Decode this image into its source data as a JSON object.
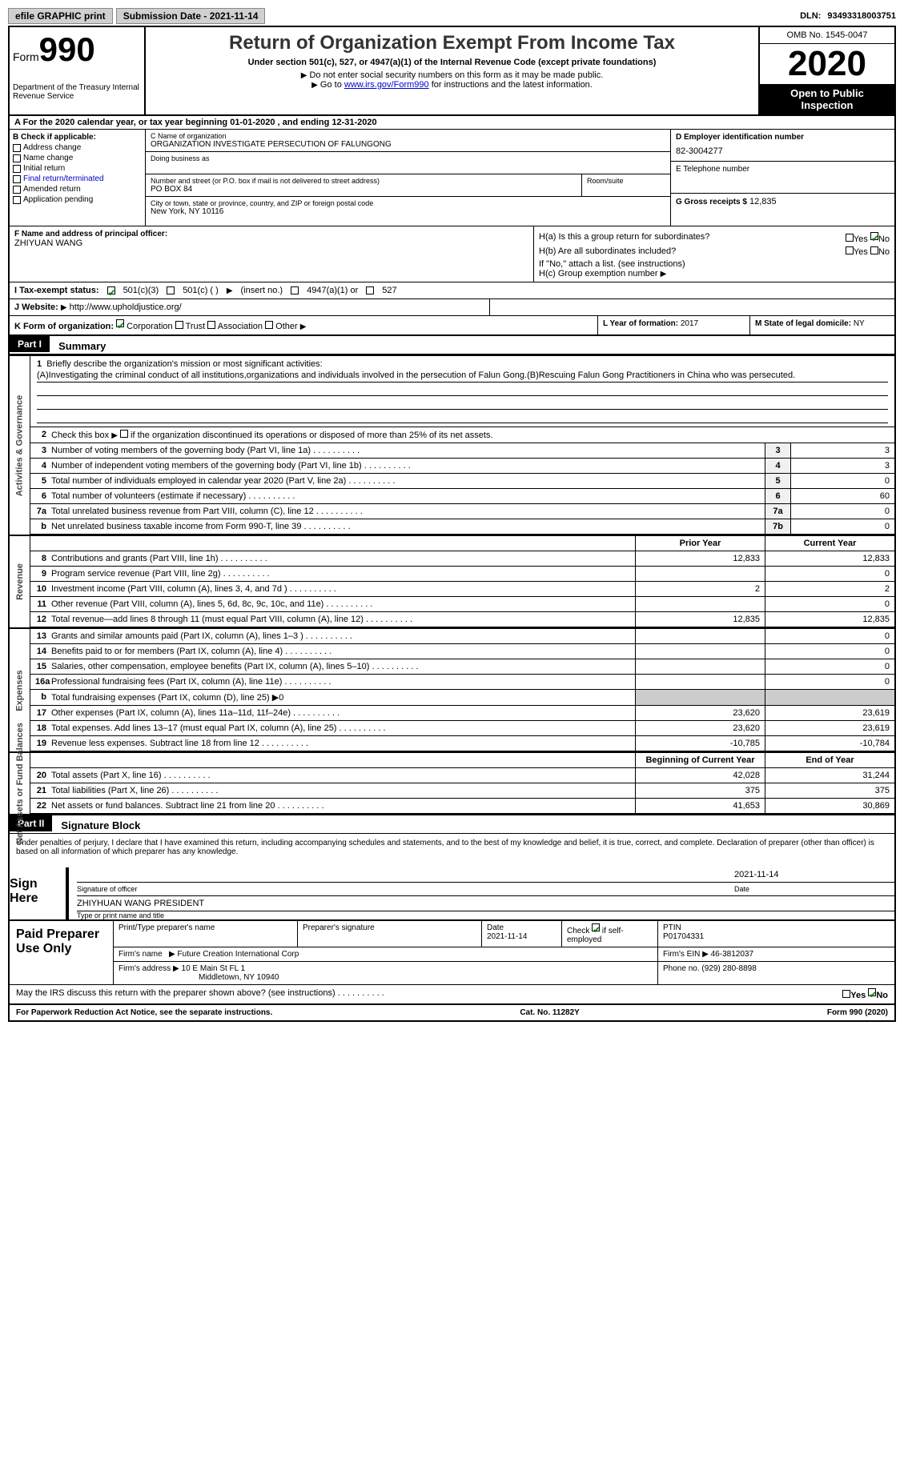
{
  "top_bar": {
    "efile": "efile GRAPHIC print",
    "submission": "Submission Date - 2021-11-14",
    "dln_label": "DLN:",
    "dln": "93493318003751"
  },
  "header": {
    "form_word": "Form",
    "form_num": "990",
    "dept": "Department of the Treasury\nInternal Revenue Service",
    "title": "Return of Organization Exempt From Income Tax",
    "under": "Under section 501(c), 527, or 4947(a)(1) of the Internal Revenue Code (except private foundations)",
    "ssn_note": "Do not enter social security numbers on this form as it may be made public.",
    "goto": "Go to ",
    "goto_link": "www.irs.gov/Form990",
    "goto_after": " for instructions and the latest information.",
    "omb": "OMB No. 1545-0047",
    "year": "2020",
    "inspection": "Open to Public Inspection"
  },
  "row_a": "For the 2020 calendar year, or tax year beginning 01-01-2020   , and ending 12-31-2020",
  "box_b": {
    "label": "B Check if applicable:",
    "items": [
      "Address change",
      "Name change",
      "Initial return",
      "Final return/terminated",
      "Amended return",
      "Application pending"
    ]
  },
  "box_c": {
    "c_label": "C Name of organization",
    "c_name": "ORGANIZATION INVESTIGATE PERSECUTION OF FALUNGONG",
    "dba_label": "Doing business as",
    "street_label": "Number and street (or P.O. box if mail is not delivered to street address)",
    "room_label": "Room/suite",
    "street": "PO BOX 84",
    "city_label": "City or town, state or province, country, and ZIP or foreign postal code",
    "city": "New York, NY  10116"
  },
  "box_d": {
    "label": "D Employer identification number",
    "value": "82-3004277"
  },
  "box_e": {
    "label": "E Telephone number"
  },
  "box_g": {
    "label": "G Gross receipts $",
    "value": "12,835"
  },
  "box_f": {
    "label": "F  Name and address of principal officer:",
    "value": "ZHIYUAN WANG"
  },
  "box_h": {
    "ha": "H(a)  Is this a group return for subordinates?",
    "hb": "H(b)  Are all subordinates included?",
    "yes": "Yes",
    "no": "No",
    "hb_note": "If \"No,\" attach a list. (see instructions)",
    "hc": "H(c)  Group exemption number"
  },
  "box_i": {
    "label": "I   Tax-exempt status:",
    "opts": [
      "501(c)(3)",
      "501(c) (  )",
      "(insert no.)",
      "4947(a)(1) or",
      "527"
    ]
  },
  "box_j": {
    "label": "J   Website:",
    "value": "http://www.upholdjustice.org/"
  },
  "box_k": {
    "label": "K Form of organization:",
    "opts": [
      "Corporation",
      "Trust",
      "Association",
      "Other"
    ]
  },
  "box_l": {
    "label": "L Year of formation:",
    "value": "2017"
  },
  "box_m": {
    "label": "M State of legal domicile:",
    "value": "NY"
  },
  "part1": {
    "hdr": "Part I",
    "title": "Summary"
  },
  "line1": {
    "num": "1",
    "label": "Briefly describe the organization's mission or most significant activities:",
    "text": "(A)Investigating the criminal conduct of all institutions,organizations and individuals involved in the persecution of Falun Gong.(B)Rescuing Falun Gong Practitioners in China who was persecuted."
  },
  "line2": {
    "num": "2",
    "text": "Check this box",
    "text2": "if the organization discontinued its operations or disposed of more than 25% of its net assets."
  },
  "grid_lines": [
    {
      "num": "3",
      "text": "Number of voting members of the governing body (Part VI, line 1a)",
      "col": "3",
      "val": "3"
    },
    {
      "num": "4",
      "text": "Number of independent voting members of the governing body (Part VI, line 1b)",
      "col": "4",
      "val": "3"
    },
    {
      "num": "5",
      "text": "Total number of individuals employed in calendar year 2020 (Part V, line 2a)",
      "col": "5",
      "val": "0"
    },
    {
      "num": "6",
      "text": "Total number of volunteers (estimate if necessary)",
      "col": "6",
      "val": "60"
    },
    {
      "num": "7a",
      "text": "Total unrelated business revenue from Part VIII, column (C), line 12",
      "col": "7a",
      "val": "0"
    },
    {
      "num": "b",
      "text": "Net unrelated business taxable income from Form 990-T, line 39",
      "col": "7b",
      "val": "0"
    }
  ],
  "prior_year": "Prior Year",
  "current_year": "Current Year",
  "vert_labels": {
    "gov": "Activities & Governance",
    "rev": "Revenue",
    "exp": "Expenses",
    "net": "Net Assets or Fund Balances"
  },
  "revenue_lines": [
    {
      "num": "8",
      "text": "Contributions and grants (Part VIII, line 1h)",
      "prior": "12,833",
      "cur": "12,833"
    },
    {
      "num": "9",
      "text": "Program service revenue (Part VIII, line 2g)",
      "prior": "",
      "cur": "0"
    },
    {
      "num": "10",
      "text": "Investment income (Part VIII, column (A), lines 3, 4, and 7d )",
      "prior": "2",
      "cur": "2"
    },
    {
      "num": "11",
      "text": "Other revenue (Part VIII, column (A), lines 5, 6d, 8c, 9c, 10c, and 11e)",
      "prior": "",
      "cur": "0"
    },
    {
      "num": "12",
      "text": "Total revenue—add lines 8 through 11 (must equal Part VIII, column (A), line 12)",
      "prior": "12,835",
      "cur": "12,835"
    }
  ],
  "expense_lines": [
    {
      "num": "13",
      "text": "Grants and similar amounts paid (Part IX, column (A), lines 1–3 )",
      "prior": "",
      "cur": "0"
    },
    {
      "num": "14",
      "text": "Benefits paid to or for members (Part IX, column (A), line 4)",
      "prior": "",
      "cur": "0"
    },
    {
      "num": "15",
      "text": "Salaries, other compensation, employee benefits (Part IX, column (A), lines 5–10)",
      "prior": "",
      "cur": "0"
    },
    {
      "num": "16a",
      "text": "Professional fundraising fees (Part IX, column (A), line 11e)",
      "prior": "",
      "cur": "0"
    },
    {
      "num": "b",
      "text": "Total fundraising expenses (Part IX, column (D), line 25) ▶0",
      "shaded": true
    },
    {
      "num": "17",
      "text": "Other expenses (Part IX, column (A), lines 11a–11d, 11f–24e)",
      "prior": "23,620",
      "cur": "23,619"
    },
    {
      "num": "18",
      "text": "Total expenses. Add lines 13–17 (must equal Part IX, column (A), line 25)",
      "prior": "23,620",
      "cur": "23,619"
    },
    {
      "num": "19",
      "text": "Revenue less expenses. Subtract line 18 from line 12",
      "prior": "-10,785",
      "cur": "-10,784"
    }
  ],
  "begin_year": "Beginning of Current Year",
  "end_year": "End of Year",
  "net_lines": [
    {
      "num": "20",
      "text": "Total assets (Part X, line 16)",
      "prior": "42,028",
      "cur": "31,244"
    },
    {
      "num": "21",
      "text": "Total liabilities (Part X, line 26)",
      "prior": "375",
      "cur": "375"
    },
    {
      "num": "22",
      "text": "Net assets or fund balances. Subtract line 21 from line 20",
      "prior": "41,653",
      "cur": "30,869"
    }
  ],
  "part2": {
    "hdr": "Part II",
    "title": "Signature Block"
  },
  "penalties": "Under penalties of perjury, I declare that I have examined this return, including accompanying schedules and statements, and to the best of my knowledge and belief, it is true, correct, and complete. Declaration of preparer (other than officer) is based on all information of which preparer has any knowledge.",
  "sign_here": "Sign Here",
  "sig_officer": "Signature of officer",
  "sig_date_label": "Date",
  "sig_date": "2021-11-14",
  "sig_name": "ZHIYHUAN WANG  PRESIDENT",
  "sig_name_label": "Type or print name and title",
  "paid_label": "Paid Preparer Use Only",
  "paid": {
    "print_label": "Print/Type preparer's name",
    "sig_label": "Preparer's signature",
    "date_label": "Date",
    "date": "2021-11-14",
    "check_label": "Check",
    "if_self": "if self-employed",
    "ptin_label": "PTIN",
    "ptin": "P01704331",
    "firm_name_label": "Firm's name",
    "firm_name": "Future Creation International Corp",
    "firm_ein_label": "Firm's EIN",
    "firm_ein": "46-3812037",
    "firm_addr_label": "Firm's address",
    "firm_addr": "10 E Main St FL 1",
    "firm_city": "Middletown, NY  10940",
    "phone_label": "Phone no.",
    "phone": "(929) 280-8898"
  },
  "discuss": "May the IRS discuss this return with the preparer shown above? (see instructions)",
  "footer": {
    "left": "For Paperwork Reduction Act Notice, see the separate instructions.",
    "center": "Cat. No. 11282Y",
    "right": "Form 990 (2020)"
  }
}
